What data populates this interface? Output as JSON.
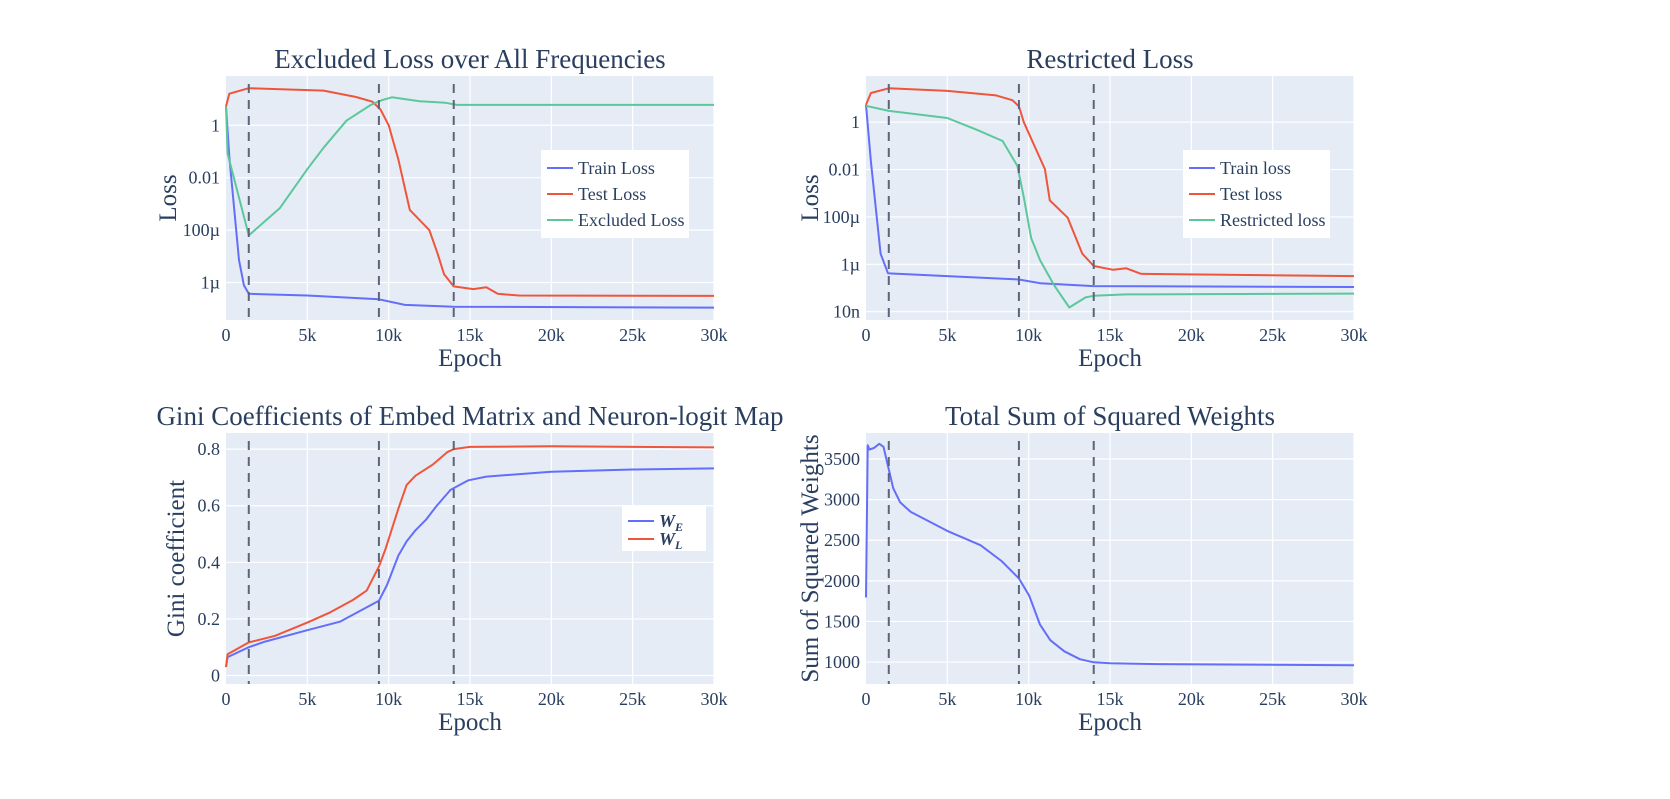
{
  "colors": {
    "background": "#e5ecf6",
    "grid": "#ffffff",
    "text": "#2a3f5f",
    "blue": "#636efa",
    "red": "#ef553b",
    "green": "#5cc79b",
    "vline": "#5b6478"
  },
  "chart_data": [
    {
      "type": "line",
      "title": "Excluded Loss over All Frequencies",
      "xlabel": "Epoch",
      "ylabel": "Loss",
      "xlim": [
        0,
        30000
      ],
      "yscale": "log",
      "ylim_log10": [
        -7.43,
        1.88
      ],
      "xticks": [
        0,
        5000,
        10000,
        15000,
        20000,
        25000,
        30000
      ],
      "xtick_labels": [
        "0",
        "5k",
        "10k",
        "15k",
        "20k",
        "25k",
        "30k"
      ],
      "yticks": [
        1,
        0.01,
        0.0001,
        1e-06
      ],
      "ytick_labels": [
        "1",
        "0.01",
        "100µ",
        "1µ"
      ],
      "grid": true,
      "legend": "right",
      "vlines": [
        1400,
        9400,
        14000
      ],
      "series": [
        {
          "name": "Train Loss",
          "color": "blue",
          "x": [
            0,
            200,
            800,
            1100,
            1400,
            5000,
            9400,
            11000,
            14000,
            30000
          ],
          "y": [
            5.2,
            0.063,
            7.2e-06,
            7.9e-07,
            3.7e-07,
            3.2e-07,
            2.3e-07,
            1.4e-07,
            1.2e-07,
            1.1e-07
          ]
        },
        {
          "name": "Test Loss",
          "color": "red",
          "x": [
            0,
            200,
            1400,
            6000,
            8000,
            9000,
            9500,
            10000,
            10600,
            11300,
            12500,
            13000,
            13400,
            14000,
            15200,
            16000,
            16700,
            18000,
            30000
          ],
          "y": [
            5.2,
            16,
            26,
            21,
            12,
            7.9,
            4.0,
            1.0,
            0.049,
            0.00059,
            0.0001,
            1.3e-05,
            2.1e-06,
            7.1e-07,
            5.6e-07,
            6.6e-07,
            3.7e-07,
            3.2e-07,
            3.1e-07
          ]
        },
        {
          "name": "Excluded Loss",
          "color": "green",
          "x": [
            0,
            100,
            1400,
            3300,
            5000,
            6000,
            7400,
            8900,
            9600,
            10200,
            11900,
            13500,
            14200,
            30000
          ],
          "y": [
            5.2,
            0.083,
            6.3e-05,
            0.00068,
            0.021,
            0.14,
            1.5,
            6.0,
            9.1,
            11.7,
            8.3,
            7.2,
            6.0,
            6.0
          ]
        }
      ]
    },
    {
      "type": "line",
      "title": "Restricted Loss",
      "xlabel": "Epoch",
      "ylabel": "Loss",
      "xlim": [
        0,
        30000
      ],
      "yscale": "log",
      "ylim_log10": [
        -8.35,
        1.95
      ],
      "xticks": [
        0,
        5000,
        10000,
        15000,
        20000,
        25000,
        30000
      ],
      "xtick_labels": [
        "0",
        "5k",
        "10k",
        "15k",
        "20k",
        "25k",
        "30k"
      ],
      "yticks": [
        1,
        0.01,
        0.0001,
        1e-06,
        1e-08
      ],
      "ytick_labels": [
        "1",
        "0.01",
        "100µ",
        "1µ",
        "10n"
      ],
      "grid": true,
      "legend": "right",
      "vlines": [
        1400,
        9400,
        14000
      ],
      "series": [
        {
          "name": "Train loss",
          "color": "blue",
          "x": [
            0,
            300,
            900,
            1350,
            5000,
            9400,
            10700,
            14000,
            30000
          ],
          "y": [
            5.4,
            0.022,
            2.8e-06,
            4.2e-07,
            3.2e-07,
            2.3e-07,
            1.6e-07,
            1.2e-07,
            1.1e-07
          ]
        },
        {
          "name": "Test loss",
          "color": "red",
          "x": [
            0,
            300,
            1400,
            5000,
            8000,
            9000,
            9400,
            9700,
            11000,
            11300,
            12400,
            13300,
            14000,
            15200,
            16000,
            16900,
            30000
          ],
          "y": [
            5.4,
            17,
            27,
            21,
            13.5,
            8.5,
            4.7,
            1.0,
            0.0105,
            0.0005,
            9.3e-05,
            2.8e-06,
            8.5e-07,
            5.9e-07,
            6.8e-07,
            4e-07,
            3.2e-07
          ]
        },
        {
          "name": "Restricted loss",
          "color": "green",
          "x": [
            0,
            1400,
            5000,
            6800,
            8400,
            9300,
            9700,
            10150,
            10700,
            11550,
            12500,
            13500,
            14000,
            16000,
            30000
          ],
          "y": [
            4.9,
            3.0,
            1.5,
            0.48,
            0.16,
            0.0145,
            0.00068,
            1.3e-05,
            1.5e-06,
            1.35e-07,
            1.5e-08,
            4e-08,
            4.7e-08,
            5.4e-08,
            5.8e-08
          ]
        }
      ]
    },
    {
      "type": "line",
      "title": "Gini Coefficients of Embed Matrix and Neuron-logit Map",
      "xlabel": "Epoch",
      "ylabel": "Gini coefficient",
      "xlim": [
        0,
        30000
      ],
      "yscale": "linear",
      "ylim": [
        -0.03,
        0.857
      ],
      "xticks": [
        0,
        5000,
        10000,
        15000,
        20000,
        25000,
        30000
      ],
      "xtick_labels": [
        "0",
        "5k",
        "10k",
        "15k",
        "20k",
        "25k",
        "30k"
      ],
      "yticks": [
        0,
        0.2,
        0.4,
        0.6,
        0.8
      ],
      "ytick_labels": [
        "0",
        "0.2",
        "0.4",
        "0.6",
        "0.8"
      ],
      "grid": true,
      "legend": "right",
      "vlines": [
        1400,
        9400,
        14000
      ],
      "series": [
        {
          "name": "W",
          "sub": "E",
          "color": "blue",
          "x": [
            0,
            100,
            1400,
            2400,
            5000,
            7000,
            8300,
            9400,
            9900,
            10600,
            11100,
            11650,
            12300,
            12900,
            13800,
            14900,
            16000,
            20000,
            25000,
            30000
          ],
          "y": [
            0.03,
            0.065,
            0.1,
            0.12,
            0.16,
            0.19,
            0.23,
            0.264,
            0.32,
            0.424,
            0.474,
            0.513,
            0.551,
            0.596,
            0.656,
            0.69,
            0.703,
            0.72,
            0.728,
            0.732
          ]
        },
        {
          "name": "W",
          "sub": "L",
          "color": "red",
          "x": [
            0,
            100,
            1400,
            3000,
            5000,
            6400,
            7800,
            8650,
            9400,
            9800,
            10600,
            11100,
            11650,
            12700,
            13600,
            14000,
            15000,
            20000,
            30000
          ],
          "y": [
            0.03,
            0.075,
            0.117,
            0.14,
            0.187,
            0.223,
            0.267,
            0.3,
            0.385,
            0.446,
            0.59,
            0.673,
            0.706,
            0.745,
            0.789,
            0.8,
            0.808,
            0.81,
            0.806
          ]
        }
      ]
    },
    {
      "type": "line",
      "title": "Total Sum of Squared Weights",
      "xlabel": "Epoch",
      "ylabel": "Sum of Squared Weights",
      "xlim": [
        0,
        30000
      ],
      "yscale": "linear",
      "ylim": [
        730,
        3820
      ],
      "xticks": [
        0,
        5000,
        10000,
        15000,
        20000,
        25000,
        30000
      ],
      "xtick_labels": [
        "0",
        "5k",
        "10k",
        "15k",
        "20k",
        "25k",
        "30k"
      ],
      "yticks": [
        1000,
        1500,
        2000,
        2500,
        3000,
        3500
      ],
      "ytick_labels": [
        "1000",
        "1500",
        "2000",
        "2500",
        "3000",
        "3500"
      ],
      "grid": true,
      "legend": "none",
      "vlines": [
        1400,
        9400,
        14000
      ],
      "series": [
        {
          "color": "blue",
          "x": [
            0,
            107,
            215,
            490,
            815,
            1073,
            1350,
            1670,
            2100,
            2750,
            5000,
            7040,
            8330,
            9400,
            10040,
            10690,
            11330,
            12190,
            13150,
            14000,
            15000,
            18000,
            30000
          ],
          "y": [
            1795,
            3668,
            3617,
            3636,
            3687,
            3650,
            3414,
            3141,
            2966,
            2849,
            2615,
            2439,
            2244,
            2030,
            1815,
            1464,
            1269,
            1133,
            1035,
            997,
            985,
            975,
            962
          ]
        }
      ]
    }
  ]
}
